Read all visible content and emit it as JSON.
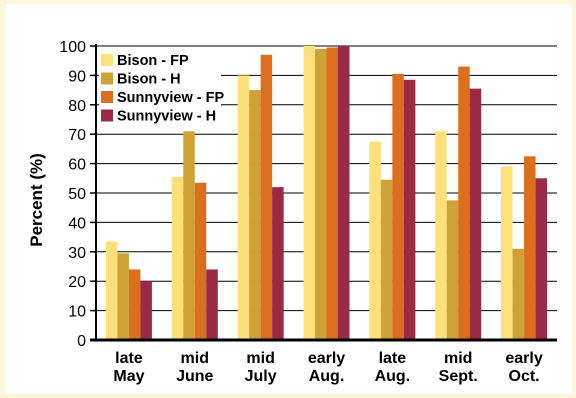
{
  "chart_data": {
    "type": "bar",
    "title": "",
    "xlabel": "",
    "ylabel": "Percent (%)",
    "ylim": [
      0,
      100
    ],
    "yticks": [
      0,
      10,
      20,
      30,
      40,
      50,
      60,
      70,
      80,
      90,
      100
    ],
    "grid": true,
    "legend_position": "top-left",
    "categories": [
      [
        "late",
        "May"
      ],
      [
        "mid",
        "June"
      ],
      [
        "mid",
        "July"
      ],
      [
        "early",
        "Aug."
      ],
      [
        "late",
        "Aug."
      ],
      [
        "mid",
        "Sept."
      ],
      [
        "early",
        "Oct."
      ]
    ],
    "series": [
      {
        "name": "Bison - FP",
        "color": "#fde07a",
        "values": [
          33.5,
          55.5,
          90,
          100,
          67.5,
          71,
          59
        ]
      },
      {
        "name": "Bison - H",
        "color": "#cfa238",
        "values": [
          29.5,
          71,
          85,
          99,
          54.5,
          47.5,
          31
        ]
      },
      {
        "name": "Sunnyview - FP",
        "color": "#dc6f1d",
        "values": [
          24,
          53.5,
          97,
          99.5,
          90.5,
          93,
          62.5
        ]
      },
      {
        "name": "Sunnyview - H",
        "color": "#9a2a45",
        "values": [
          20,
          24,
          52,
          100,
          88.5,
          85.5,
          55
        ]
      }
    ]
  }
}
